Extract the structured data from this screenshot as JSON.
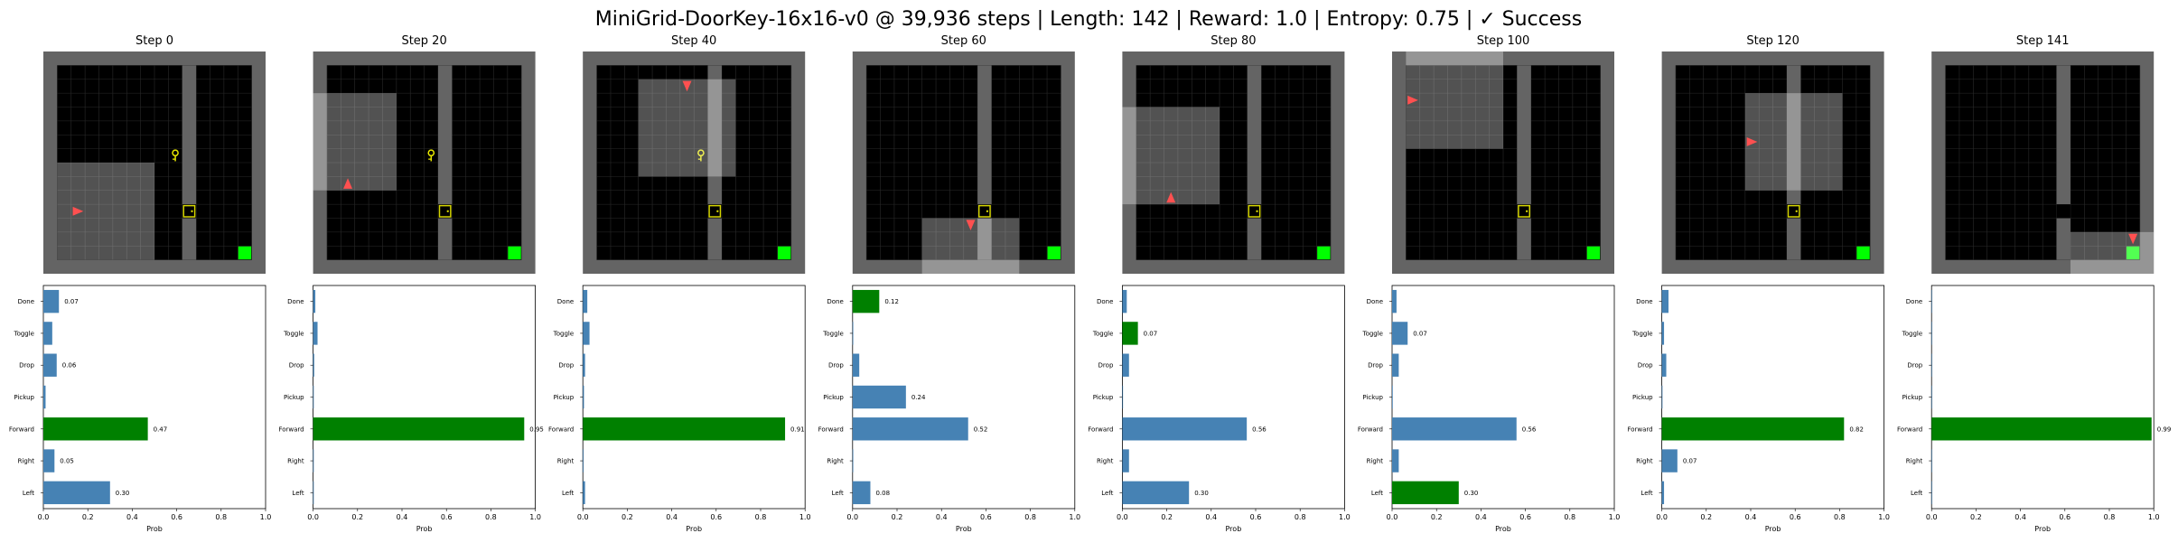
{
  "title": "MiniGrid-DoorKey-16x16-v0 @ 39,936 steps | Length: 142 | Reward: 1.0 | Entropy: 0.75 | ✓ Success",
  "colors": {
    "wall": "#646464",
    "floor": "#000000",
    "gridline": "#2a2a2a",
    "view": "#ffffff",
    "agent": "#ff5050",
    "key": "#e8e800",
    "door": "#d4d400",
    "goal": "#00ff00",
    "bar_default": "#4682b4",
    "bar_selected": "#008000"
  },
  "chart_data": {
    "type": "bar",
    "orientation": "horizontal",
    "categories": [
      "Left",
      "Right",
      "Forward",
      "Pickup",
      "Drop",
      "Toggle",
      "Done"
    ],
    "xlabel": "Prob",
    "xlim": [
      0,
      1
    ],
    "xticks": [
      "0.0",
      "0.2",
      "0.4",
      "0.6",
      "0.8",
      "1.0"
    ],
    "label_threshold": 0.05,
    "panels": [
      {
        "label": "Step 0",
        "values": [
          0.3,
          0.05,
          0.47,
          0.01,
          0.06,
          0.04,
          0.07
        ],
        "labels": [
          "0.30",
          "0.05",
          "0.47",
          "",
          "0.06",
          "",
          "0.07"
        ],
        "selected": "Forward",
        "grid": {
          "agent": [
            2,
            11
          ],
          "agent_dir": "right",
          "key": [
            9,
            7
          ],
          "door": [
            10,
            11
          ],
          "wall_col": 10,
          "goal": [
            14,
            14
          ],
          "view": [
            1,
            8,
            7,
            7
          ],
          "key_visible": true
        }
      },
      {
        "label": "Step 20",
        "values": [
          0.003,
          0.003,
          0.95,
          0.003,
          0.005,
          0.02,
          0.01
        ],
        "labels": [
          "",
          "",
          "0.95",
          "",
          "",
          "",
          ""
        ],
        "selected": "Forward",
        "grid": {
          "agent": [
            2,
            9
          ],
          "agent_dir": "up",
          "key": [
            8,
            7
          ],
          "door": [
            9,
            11
          ],
          "wall_col": 9,
          "goal": [
            14,
            14
          ],
          "view": [
            -1,
            3,
            7,
            7
          ],
          "key_visible": true
        }
      },
      {
        "label": "Step 40",
        "values": [
          0.01,
          0.003,
          0.91,
          0.005,
          0.01,
          0.03,
          0.02
        ],
        "labels": [
          "",
          "",
          "0.91",
          "",
          "",
          "",
          ""
        ],
        "selected": "Forward",
        "grid": {
          "agent": [
            7,
            2
          ],
          "agent_dir": "down",
          "key": [
            8,
            7
          ],
          "door": [
            9,
            11
          ],
          "wall_col": 9,
          "goal": [
            14,
            14
          ],
          "view": [
            4,
            2,
            7,
            7
          ],
          "key_visible": true
        }
      },
      {
        "label": "Step 60",
        "values": [
          0.08,
          0.003,
          0.52,
          0.24,
          0.03,
          0.003,
          0.12
        ],
        "labels": [
          "0.08",
          "",
          "0.52",
          "0.24",
          "",
          "",
          "0.12"
        ],
        "selected": "Done",
        "grid": {
          "agent": [
            8,
            12
          ],
          "agent_dir": "down",
          "key": null,
          "door": [
            9,
            11
          ],
          "wall_col": 9,
          "goal": [
            14,
            14
          ],
          "view": [
            5,
            12,
            7,
            7
          ],
          "key_visible": false
        }
      },
      {
        "label": "Step 80",
        "values": [
          0.3,
          0.03,
          0.56,
          0.003,
          0.03,
          0.07,
          0.02
        ],
        "labels": [
          "0.30",
          "",
          "0.56",
          "",
          "",
          "0.07",
          ""
        ],
        "selected": "Toggle",
        "grid": {
          "agent": [
            3,
            10
          ],
          "agent_dir": "up",
          "key": null,
          "door": [
            9,
            11
          ],
          "wall_col": 9,
          "goal": [
            14,
            14
          ],
          "view": [
            0,
            4,
            7,
            7
          ],
          "key_visible": false
        }
      },
      {
        "label": "Step 100",
        "values": [
          0.3,
          0.03,
          0.56,
          0.003,
          0.03,
          0.07,
          0.02
        ],
        "labels": [
          "0.30",
          "",
          "0.56",
          "",
          "",
          "0.07",
          ""
        ],
        "selected": "Left",
        "grid": {
          "agent": [
            1,
            3
          ],
          "agent_dir": "right",
          "key": null,
          "door": [
            9,
            11
          ],
          "wall_col": 9,
          "goal": [
            14,
            14
          ],
          "view": [
            1,
            0,
            7,
            7
          ],
          "key_visible": false
        }
      },
      {
        "label": "Step 120",
        "values": [
          0.01,
          0.07,
          0.82,
          0.003,
          0.02,
          0.01,
          0.03
        ],
        "labels": [
          "",
          "0.07",
          "0.82",
          "",
          "",
          "",
          ""
        ],
        "selected": "Forward",
        "grid": {
          "agent": [
            6,
            6
          ],
          "agent_dir": "right",
          "key": null,
          "door": [
            9,
            11
          ],
          "wall_col": 9,
          "goal": [
            14,
            14
          ],
          "view": [
            6,
            3,
            7,
            7
          ],
          "key_visible": false
        }
      },
      {
        "label": "Step 141",
        "values": [
          0.001,
          0.001,
          0.99,
          0.001,
          0.001,
          0.001,
          0.001
        ],
        "labels": [
          "",
          "",
          "0.99",
          "",
          "",
          "",
          ""
        ],
        "selected": "Forward",
        "grid": {
          "agent": [
            14,
            13
          ],
          "agent_dir": "down",
          "key": null,
          "door": [
            9,
            11
          ],
          "door_open": true,
          "wall_col": 9,
          "goal": [
            14,
            14
          ],
          "view": [
            10,
            13,
            7,
            7
          ],
          "key_visible": false
        }
      }
    ]
  }
}
